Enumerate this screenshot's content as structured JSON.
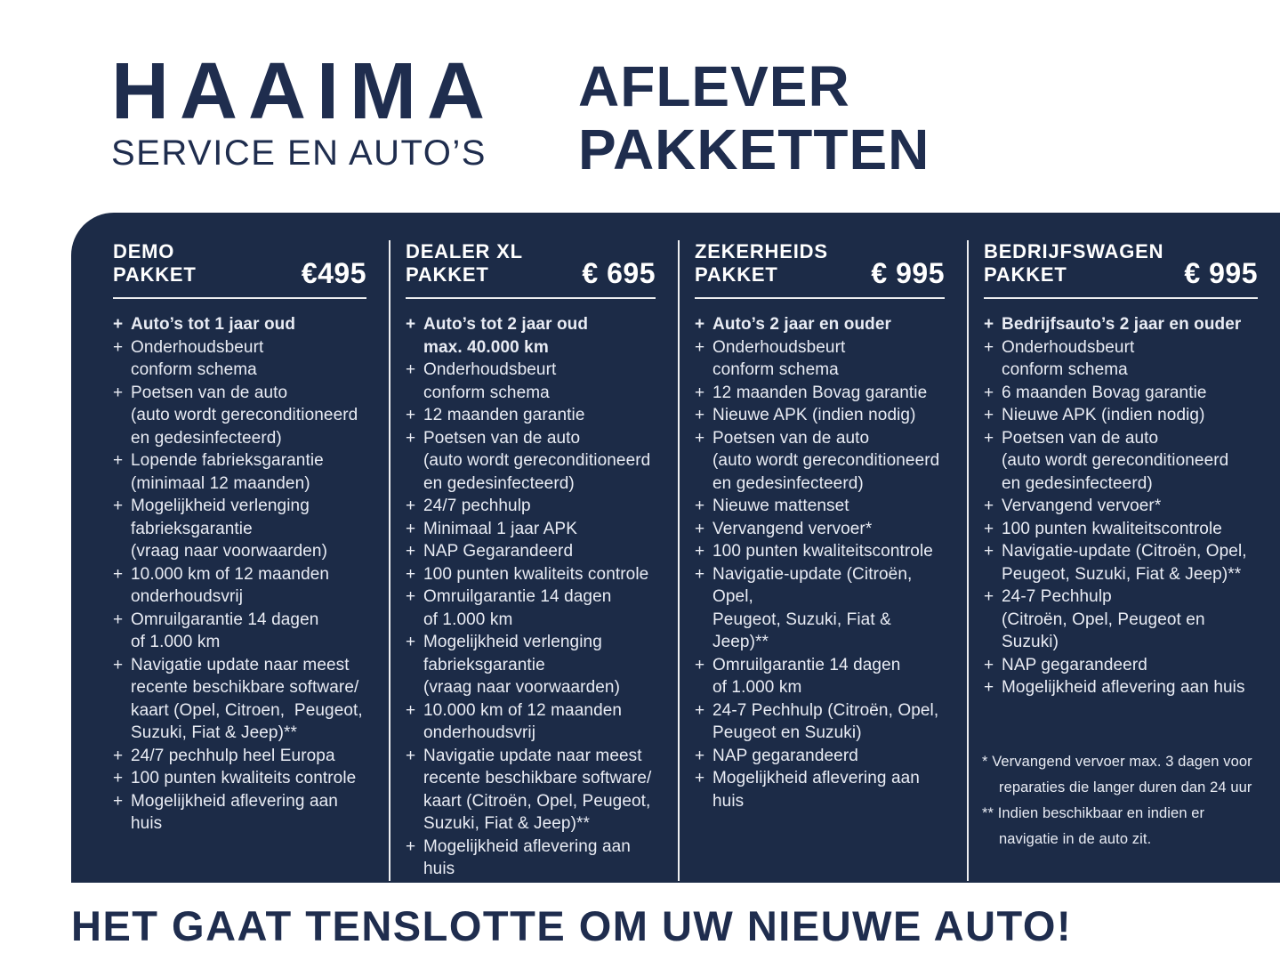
{
  "brand": {
    "name": "HAAIMA",
    "subtitle": "SERVICE EN AUTO’S"
  },
  "title_lines": [
    "AFLEVER",
    "PAKKETTEN"
  ],
  "tagline": "HET GAAT TENSLOTTE OM UW NIEUWE AUTO!",
  "list_marker": "+",
  "colors": {
    "navy": "#1F2D4E",
    "panel_bg": "#1C2B47",
    "item_text": "#E9ECF4",
    "divider": "#FFFFFF"
  },
  "packages": [
    {
      "name_lines": [
        "DEMO",
        "PAKKET"
      ],
      "price": "€495",
      "items": [
        {
          "bold": true,
          "lines": [
            "Auto’s tot 1 jaar oud"
          ]
        },
        {
          "lines": [
            "Onderhoudsbeurt",
            "conform schema"
          ]
        },
        {
          "lines": [
            "Poetsen van de auto",
            "(auto wordt gereconditioneerd",
            "en gedesinfecteerd)"
          ]
        },
        {
          "lines": [
            "Lopende fabrieksgarantie",
            "(minimaal 12 maanden)"
          ]
        },
        {
          "lines": [
            "Mogelijkheid verlenging",
            "fabrieksgarantie",
            "(vraag naar voorwaarden)"
          ]
        },
        {
          "lines": [
            "10.000 km of 12 maanden",
            "onderhoudsvrij"
          ]
        },
        {
          "lines": [
            "Omruilgarantie 14 dagen",
            "of 1.000 km"
          ]
        },
        {
          "lines": [
            "Navigatie update naar meest",
            "recente beschikbare software/",
            "kaart (Opel, Citroen,  Peugeot,",
            "Suzuki, Fiat & Jeep)**"
          ]
        },
        {
          "lines": [
            "24/7 pechhulp heel Europa"
          ]
        },
        {
          "lines": [
            "100 punten kwaliteits controle"
          ]
        },
        {
          "lines": [
            "Mogelijkheid aflevering aan huis"
          ]
        }
      ]
    },
    {
      "name_lines": [
        "DEALER XL",
        "PAKKET"
      ],
      "price": "€ 695",
      "items": [
        {
          "bold": true,
          "lines": [
            "Auto’s tot 2 jaar oud",
            "max. 40.000 km"
          ]
        },
        {
          "lines": [
            "Onderhoudsbeurt",
            "conform schema"
          ]
        },
        {
          "lines": [
            "12 maanden garantie"
          ]
        },
        {
          "lines": [
            "Poetsen van de auto",
            "(auto wordt gereconditioneerd",
            "en gedesinfecteerd)"
          ]
        },
        {
          "lines": [
            "24/7 pechhulp"
          ]
        },
        {
          "lines": [
            "Minimaal 1 jaar APK"
          ]
        },
        {
          "lines": [
            "NAP Gegarandeerd"
          ]
        },
        {
          "lines": [
            "100 punten kwaliteits controle"
          ]
        },
        {
          "lines": [
            "Omruilgarantie 14 dagen",
            "of 1.000 km"
          ]
        },
        {
          "lines": [
            "Mogelijkheid verlenging",
            "fabrieksgarantie",
            "(vraag naar voorwaarden)"
          ]
        },
        {
          "lines": [
            "10.000 km of 12 maanden",
            "onderhoudsvrij"
          ]
        },
        {
          "lines": [
            "Navigatie update naar meest",
            "recente beschikbare software/",
            "kaart (Citroën, Opel, Peugeot,",
            "Suzuki, Fiat & Jeep)**"
          ]
        },
        {
          "lines": [
            "Mogelijkheid aflevering aan huis"
          ]
        }
      ]
    },
    {
      "name_lines": [
        "ZEKERHEIDS",
        "PAKKET"
      ],
      "price": "€ 995",
      "items": [
        {
          "bold": true,
          "lines": [
            "Auto’s 2 jaar en ouder"
          ]
        },
        {
          "lines": [
            "Onderhoudsbeurt",
            "conform schema"
          ]
        },
        {
          "lines": [
            "12 maanden Bovag garantie"
          ]
        },
        {
          "lines": [
            "Nieuwe APK (indien nodig)"
          ]
        },
        {
          "lines": [
            "Poetsen van de auto",
            "(auto wordt gereconditioneerd",
            "en gedesinfecteerd)"
          ]
        },
        {
          "lines": [
            "Nieuwe mattenset"
          ]
        },
        {
          "lines": [
            "Vervangend vervoer*"
          ]
        },
        {
          "lines": [
            "100 punten kwaliteitscontrole"
          ]
        },
        {
          "lines": [
            "Navigatie-update (Citroën, Opel,",
            "Peugeot, Suzuki, Fiat & Jeep)**"
          ]
        },
        {
          "lines": [
            "Omruilgarantie 14 dagen",
            "of 1.000 km"
          ]
        },
        {
          "lines": [
            "24-7 Pechhulp (Citroën, Opel,",
            "Peugeot en Suzuki)"
          ]
        },
        {
          "lines": [
            "NAP gegarandeerd"
          ]
        },
        {
          "lines": [
            "Mogelijkheid aflevering aan huis"
          ]
        }
      ]
    },
    {
      "name_lines": [
        "BEDRIJFSWAGEN",
        "PAKKET"
      ],
      "price": "€ 995",
      "items": [
        {
          "bold": true,
          "lines": [
            "Bedrijfsauto’s 2 jaar en ouder"
          ]
        },
        {
          "lines": [
            "Onderhoudsbeurt",
            "conform schema"
          ]
        },
        {
          "lines": [
            "6 maanden Bovag garantie"
          ]
        },
        {
          "lines": [
            "Nieuwe APK (indien nodig)"
          ]
        },
        {
          "lines": [
            "Poetsen van de auto",
            "(auto wordt gereconditioneerd",
            "en gedesinfecteerd)"
          ]
        },
        {
          "lines": [
            "Vervangend vervoer*"
          ]
        },
        {
          "lines": [
            "100 punten kwaliteitscontrole"
          ]
        },
        {
          "lines": [
            "Navigatie-update (Citroën, Opel,",
            "Peugeot, Suzuki, Fiat & Jeep)**"
          ]
        },
        {
          "lines": [
            "24-7 Pechhulp",
            "(Citroën, Opel, Peugeot en Suzuki)"
          ]
        },
        {
          "lines": [
            "NAP gegarandeerd"
          ]
        },
        {
          "lines": [
            "Mogelijkheid aflevering aan huis"
          ]
        }
      ]
    }
  ],
  "footnotes": [
    {
      "lines": [
        "* Vervangend vervoer max. 3 dagen voor",
        "reparaties die langer duren dan 24 uur"
      ]
    },
    {
      "lines": [
        "** Indien beschikbaar en indien er",
        "navigatie in de auto zit."
      ]
    }
  ]
}
